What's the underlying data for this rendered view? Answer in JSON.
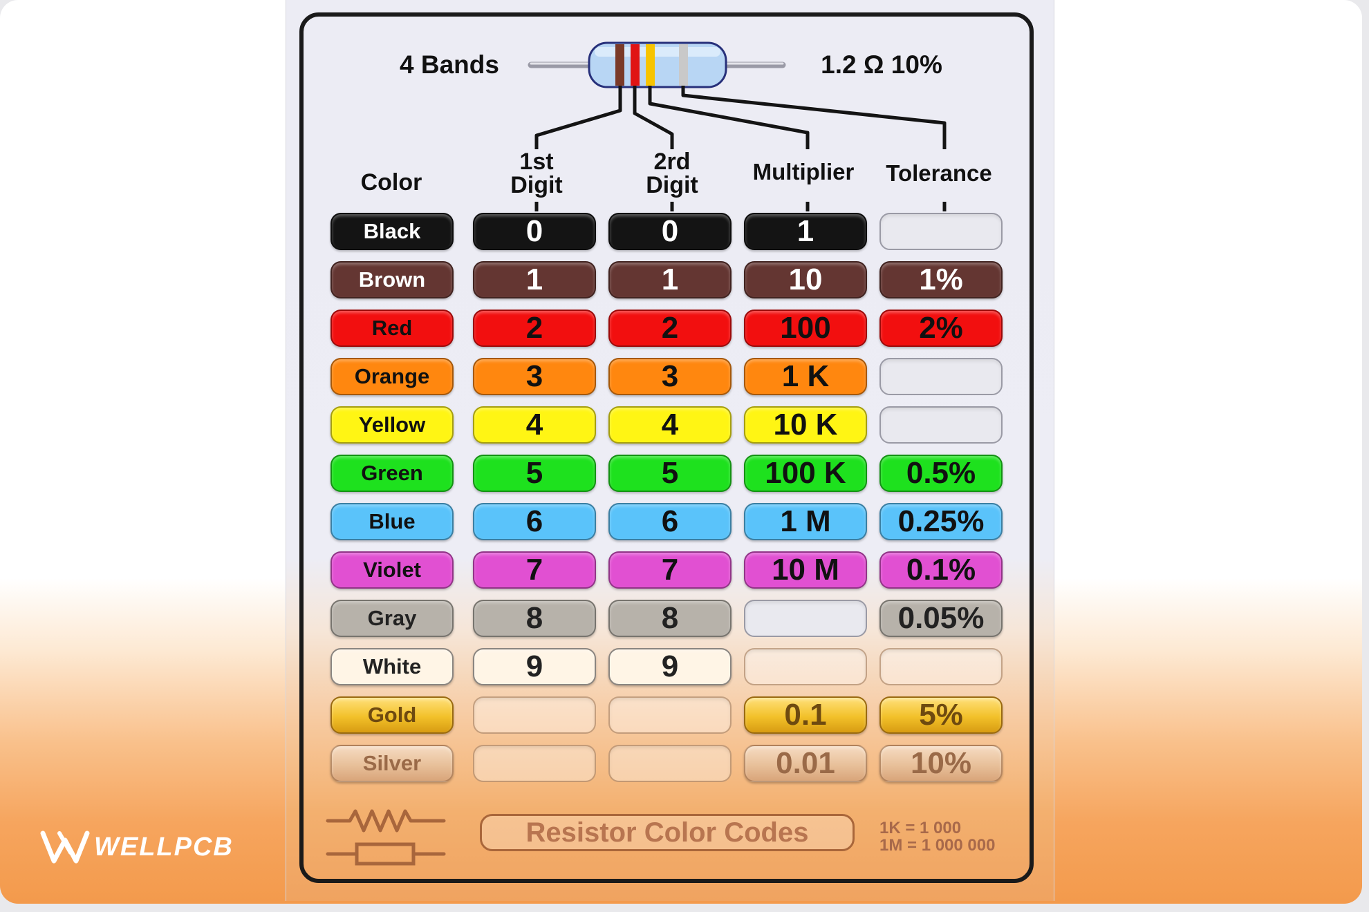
{
  "header": {
    "bands_label": "4 Bands",
    "example_value": "1.2 Ω 10%"
  },
  "resistor": {
    "band_colors": [
      "#7a3a28",
      "#e01414",
      "#f7c400",
      "#c9c9c9"
    ]
  },
  "columns": {
    "color": "Color",
    "digit1_line1": "1st",
    "digit1_line2": "Digit",
    "digit2_line1": "2rd",
    "digit2_line2": "Digit",
    "multiplier": "Multiplier",
    "tolerance": "Tolerance"
  },
  "rows": [
    {
      "name": "Black",
      "d1": "0",
      "d2": "0",
      "mult": "1",
      "tol": "",
      "bg": "#141414",
      "fg": "#ffffff"
    },
    {
      "name": "Brown",
      "d1": "1",
      "d2": "1",
      "mult": "10",
      "tol": "1%",
      "bg": "#643632",
      "fg": "#ffffff"
    },
    {
      "name": "Red",
      "d1": "2",
      "d2": "2",
      "mult": "100",
      "tol": "2%",
      "bg": "#f20f0f",
      "fg": "#111111"
    },
    {
      "name": "Orange",
      "d1": "3",
      "d2": "3",
      "mult": "1 K",
      "tol": "",
      "bg": "#ff870f",
      "fg": "#111111"
    },
    {
      "name": "Yellow",
      "d1": "4",
      "d2": "4",
      "mult": "10 K",
      "tol": "",
      "bg": "#fff514",
      "fg": "#111111"
    },
    {
      "name": "Green",
      "d1": "5",
      "d2": "5",
      "mult": "100 K",
      "tol": "0.5%",
      "bg": "#1ee11e",
      "fg": "#111111"
    },
    {
      "name": "Blue",
      "d1": "6",
      "d2": "6",
      "mult": "1 M",
      "tol": "0.25%",
      "bg": "#5ac3fa",
      "fg": "#111111"
    },
    {
      "name": "Violet",
      "d1": "7",
      "d2": "7",
      "mult": "10 M",
      "tol": "0.1%",
      "bg": "#e150d2",
      "fg": "#111111"
    },
    {
      "name": "Gray",
      "d1": "8",
      "d2": "8",
      "mult": "",
      "tol": "0.05%",
      "bg": "#b7b2aa",
      "fg": "#222222"
    },
    {
      "name": "White",
      "d1": "9",
      "d2": "9",
      "mult": "",
      "tol": "",
      "bg": "#fff5e6",
      "fg": "#222222"
    },
    {
      "name": "Gold",
      "d1": "",
      "d2": "",
      "mult": "0.1",
      "tol": "5%",
      "bg": "#f2c12a",
      "fg": "#6e4a10"
    },
    {
      "name": "Silver",
      "d1": "",
      "d2": "",
      "mult": "0.01",
      "tol": "10%",
      "bg": "#e8c09a",
      "fg": "#9a6a48"
    }
  ],
  "footer": {
    "title": "Resistor Color Codes",
    "note1": "1K = 1 000",
    "note2": "1M = 1 000 000"
  },
  "brand": {
    "name": "WELLPCB"
  }
}
